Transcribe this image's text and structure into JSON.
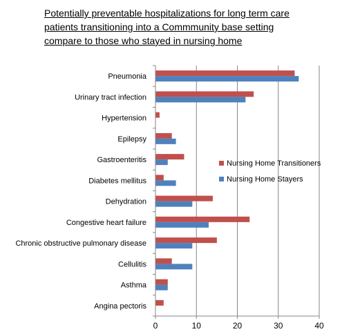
{
  "chart_data": {
    "type": "bar",
    "orientation": "horizontal",
    "title_lines": [
      "Potentially preventable  hospitalizations for long term care",
      "patients transitioning into a Commmunity  base setting",
      "compare to  those who stayed in nursing home"
    ],
    "categories": [
      "Pneumonia",
      "Urinary tract infection",
      "Hypertension",
      "Epilepsy",
      "Gastroenteritis",
      "Diabetes mellitus",
      "Dehydration",
      "Congestive heart failure",
      "Chronic obstructive pulmonary disease",
      "Cellulitis",
      "Asthma",
      "Angina pectoris"
    ],
    "series": [
      {
        "name": "Nursing Home Transitioners",
        "color": "#c0504d",
        "values": [
          34,
          24,
          1,
          4,
          7,
          2,
          14,
          23,
          15,
          4,
          3,
          2
        ]
      },
      {
        "name": "Nursing Home Stayers",
        "color": "#4f81bd",
        "values": [
          35,
          22,
          0,
          5,
          3,
          5,
          9,
          13,
          9,
          9,
          3,
          0
        ]
      }
    ],
    "xlim": [
      0,
      40
    ],
    "x_ticks": [
      "0",
      "10",
      "20",
      "30",
      "40"
    ],
    "grid": "vertical",
    "legend_position": "right"
  }
}
